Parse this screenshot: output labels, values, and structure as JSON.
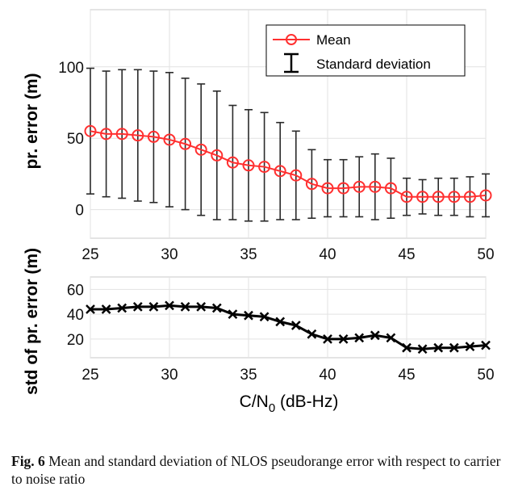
{
  "chart_data": [
    {
      "type": "line",
      "x": [
        25,
        26,
        27,
        28,
        29,
        30,
        31,
        32,
        33,
        34,
        35,
        36,
        37,
        38,
        39,
        40,
        41,
        42,
        43,
        44,
        45,
        46,
        47,
        48,
        49,
        50
      ],
      "series": [
        {
          "name": "Mean",
          "color": "#ff3030",
          "marker": "circle-open",
          "values": [
            55,
            53,
            53,
            52,
            51,
            49,
            46,
            42,
            38,
            33,
            31,
            30,
            27,
            24,
            18,
            15,
            15,
            16,
            16,
            15,
            9,
            9,
            9,
            9,
            9,
            10
          ]
        },
        {
          "name": "Standard deviation",
          "color": "#000000",
          "marker": "errorbar",
          "values": [
            44,
            44,
            45,
            46,
            46,
            47,
            46,
            46,
            45,
            40,
            39,
            38,
            34,
            31,
            24,
            20,
            20,
            21,
            23,
            21,
            13,
            12,
            13,
            13,
            14,
            15
          ]
        }
      ],
      "error_bar_halfwidths": [
        44,
        44,
        45,
        46,
        46,
        47,
        46,
        46,
        45,
        40,
        39,
        38,
        34,
        31,
        24,
        20,
        20,
        21,
        23,
        21,
        13,
        12,
        13,
        13,
        14,
        15
      ],
      "xlim": [
        25,
        50
      ],
      "ylim": [
        -20,
        140
      ],
      "xticks": [
        "25",
        "30",
        "35",
        "40",
        "45",
        "50"
      ],
      "yticks": [
        "0",
        "50",
        "100"
      ],
      "ylabel": "pr. error (m)",
      "legend": {
        "placement": "top-right",
        "entries": [
          "Mean",
          "Standard deviation"
        ]
      },
      "grid": true
    },
    {
      "type": "line",
      "x": [
        25,
        26,
        27,
        28,
        29,
        30,
        31,
        32,
        33,
        34,
        35,
        36,
        37,
        38,
        39,
        40,
        41,
        42,
        43,
        44,
        45,
        46,
        47,
        48,
        49,
        50
      ],
      "series": [
        {
          "name": "",
          "color": "#000000",
          "marker": "x",
          "values": [
            44,
            44,
            45,
            46,
            46,
            47,
            46,
            46,
            45,
            40,
            39,
            38,
            34,
            31,
            24,
            20,
            20,
            21,
            23,
            21,
            13,
            12,
            13,
            13,
            14,
            15
          ]
        }
      ],
      "xlim": [
        25,
        50
      ],
      "ylim": [
        5,
        70
      ],
      "xticks": [
        "25",
        "30",
        "35",
        "40",
        "45",
        "50"
      ],
      "yticks": [
        "20",
        "40",
        "60"
      ],
      "ylabel": "std of pr. error (m)",
      "xlabel_main": "C/N",
      "xlabel_sub": "0",
      "xlabel_unit": " (dB-Hz)",
      "grid": true
    }
  ],
  "caption": {
    "label": "Fig. 6",
    "text": " Mean and standard deviation of NLOS pseudorange error with respect to carrier to noise ratio"
  }
}
